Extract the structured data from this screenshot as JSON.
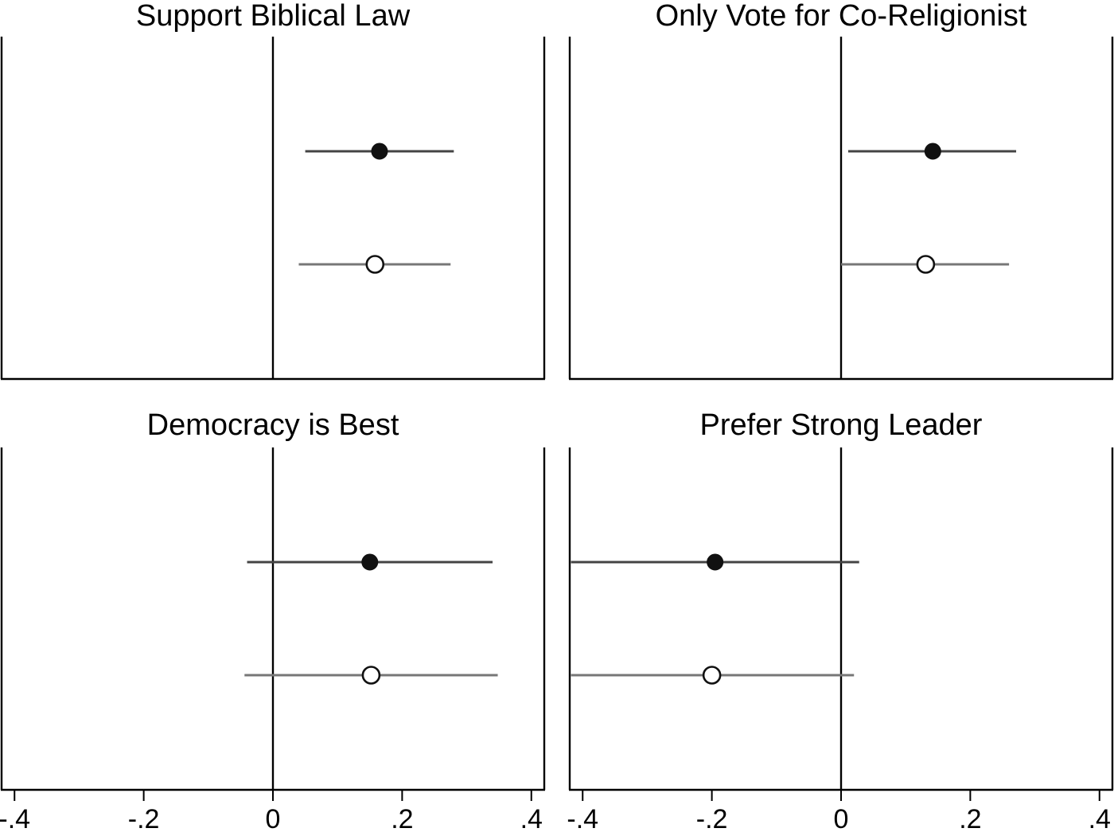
{
  "chart_data": {
    "type": "scatter",
    "subtype": "coefficient-plot",
    "grid": false,
    "legend": "none",
    "layout": "2x2",
    "xlim": [
      -0.42,
      0.42
    ],
    "x_ticks": [
      -0.4,
      -0.2,
      0,
      0.2,
      0.4
    ],
    "x_tick_labels": [
      "-.4",
      "-.2",
      "0",
      ".2",
      ".4"
    ],
    "reference_line_x": 0,
    "colors": {
      "filled_point": "#111111",
      "filled_interval": "#444444",
      "hollow_interval": "#777777",
      "frame": "#000000"
    },
    "panels": [
      {
        "title": "Support Biblical Law",
        "estimates": [
          {
            "marker": "filled",
            "estimate": 0.165,
            "ci": [
              0.05,
              0.28
            ]
          },
          {
            "marker": "hollow",
            "estimate": 0.158,
            "ci": [
              0.04,
              0.275
            ]
          }
        ]
      },
      {
        "title": "Only Vote for Co-Religionist",
        "estimates": [
          {
            "marker": "filled",
            "estimate": 0.142,
            "ci": [
              0.011,
              0.271
            ]
          },
          {
            "marker": "hollow",
            "estimate": 0.131,
            "ci": [
              0.0,
              0.26
            ]
          }
        ]
      },
      {
        "title": "Democracy is Best",
        "estimates": [
          {
            "marker": "filled",
            "estimate": 0.15,
            "ci": [
              -0.04,
              0.34
            ]
          },
          {
            "marker": "hollow",
            "estimate": 0.152,
            "ci": [
              -0.044,
              0.348
            ]
          }
        ]
      },
      {
        "title": "Prefer Strong Leader",
        "estimates": [
          {
            "marker": "filled",
            "estimate": -0.195,
            "ci": [
              -0.418,
              0.028
            ]
          },
          {
            "marker": "hollow",
            "estimate": -0.2,
            "ci": [
              -0.418,
              0.02
            ]
          }
        ]
      }
    ]
  }
}
